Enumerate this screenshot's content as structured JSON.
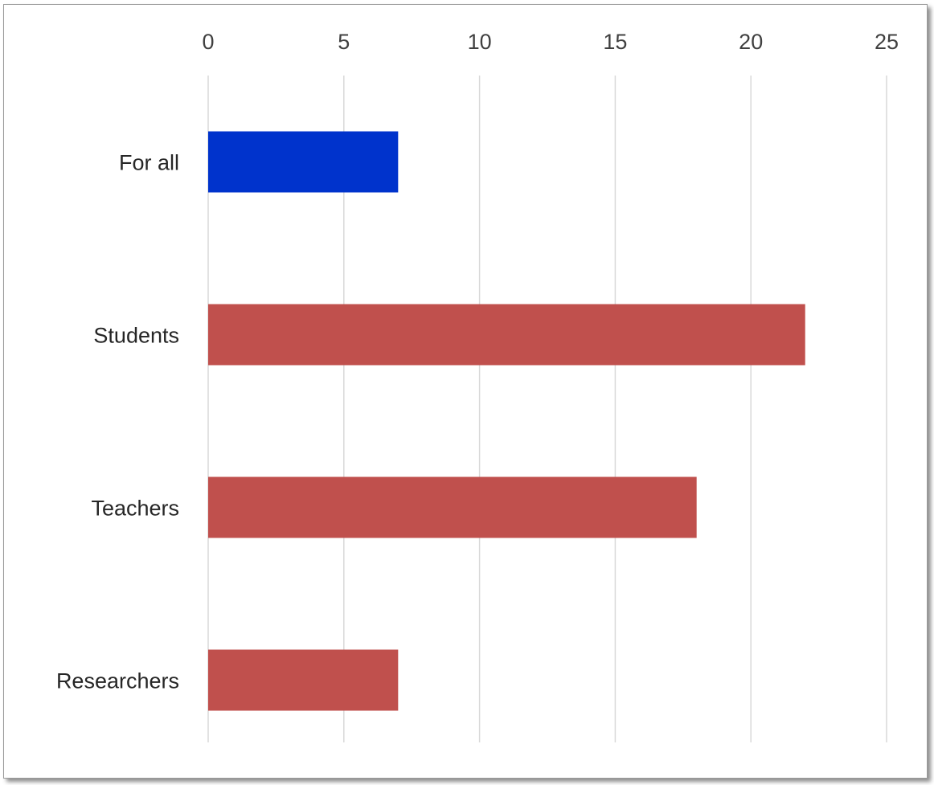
{
  "chart_data": {
    "type": "bar",
    "orientation": "horizontal",
    "categories": [
      "For all",
      "Students",
      "Teachers",
      "Researchers"
    ],
    "values": [
      7,
      22,
      18,
      7
    ],
    "bar_colors": [
      "#0033CC",
      "#C0504D",
      "#C0504D",
      "#C0504D"
    ],
    "xlim": [
      0,
      25
    ],
    "x_ticks": [
      0,
      5,
      10,
      15,
      20,
      25
    ],
    "x_tick_labels": [
      "0",
      "5",
      "10",
      "15",
      "20",
      "25"
    ],
    "x_axis_position": "top",
    "grid": true,
    "legend": "none",
    "title": "",
    "xlabel": "",
    "ylabel": ""
  }
}
